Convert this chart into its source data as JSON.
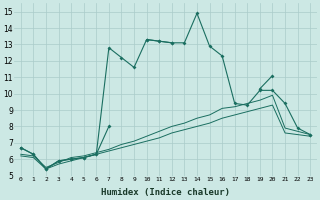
{
  "xlabel": "Humidex (Indice chaleur)",
  "bg_color": "#cce8e4",
  "grid_color": "#aaccca",
  "line_color": "#1a6e60",
  "xlim": [
    -0.5,
    23.5
  ],
  "ylim": [
    5,
    15.5
  ],
  "xticks": [
    0,
    1,
    2,
    3,
    4,
    5,
    6,
    7,
    8,
    9,
    10,
    11,
    12,
    13,
    14,
    15,
    16,
    17,
    18,
    19,
    20,
    21,
    22,
    23
  ],
  "yticks": [
    5,
    6,
    7,
    8,
    9,
    10,
    11,
    12,
    13,
    14,
    15
  ],
  "series1_x": [
    0,
    1,
    2,
    3,
    4,
    5,
    6,
    7,
    8,
    9,
    10,
    11,
    12,
    13,
    14,
    15,
    16,
    17,
    18,
    19,
    20,
    21,
    22,
    23
  ],
  "series1_y": [
    6.7,
    6.3,
    5.4,
    5.9,
    6.0,
    6.1,
    6.3,
    8.0,
    null,
    null,
    13.3,
    13.2,
    13.1,
    13.1,
    14.9,
    12.9,
    12.3,
    9.4,
    9.3,
    10.2,
    10.2,
    9.4,
    7.9,
    7.5
  ],
  "series2_x": [
    0,
    1,
    2,
    3,
    4,
    5,
    6,
    7,
    8,
    9,
    10,
    11,
    12,
    13,
    14,
    15,
    16,
    17,
    18,
    19,
    20,
    21,
    22,
    23
  ],
  "series2_y": [
    6.7,
    6.3,
    5.4,
    5.9,
    6.0,
    6.1,
    6.3,
    12.8,
    12.2,
    11.6,
    13.3,
    13.2,
    13.1,
    null,
    null,
    null,
    null,
    null,
    null,
    10.3,
    11.1,
    null,
    null,
    7.5
  ],
  "series3_x": [
    0,
    1,
    2,
    3,
    4,
    5,
    6,
    7,
    8,
    9,
    10,
    11,
    12,
    13,
    14,
    15,
    16,
    17,
    18,
    19,
    20,
    21,
    22,
    23
  ],
  "series3_y": [
    6.3,
    6.2,
    5.5,
    5.8,
    6.1,
    6.2,
    6.4,
    6.6,
    6.9,
    7.1,
    7.4,
    7.7,
    8.0,
    8.2,
    8.5,
    8.7,
    9.1,
    9.2,
    9.4,
    9.6,
    9.9,
    7.9,
    7.7,
    7.5
  ],
  "series4_x": [
    0,
    1,
    2,
    3,
    4,
    5,
    6,
    7,
    8,
    9,
    10,
    11,
    12,
    13,
    14,
    15,
    16,
    17,
    18,
    19,
    20,
    21,
    22,
    23
  ],
  "series4_y": [
    6.2,
    6.1,
    5.4,
    5.7,
    5.9,
    6.1,
    6.3,
    6.5,
    6.7,
    6.9,
    7.1,
    7.3,
    7.6,
    7.8,
    8.0,
    8.2,
    8.5,
    8.7,
    8.9,
    9.1,
    9.3,
    7.6,
    7.5,
    7.4
  ]
}
